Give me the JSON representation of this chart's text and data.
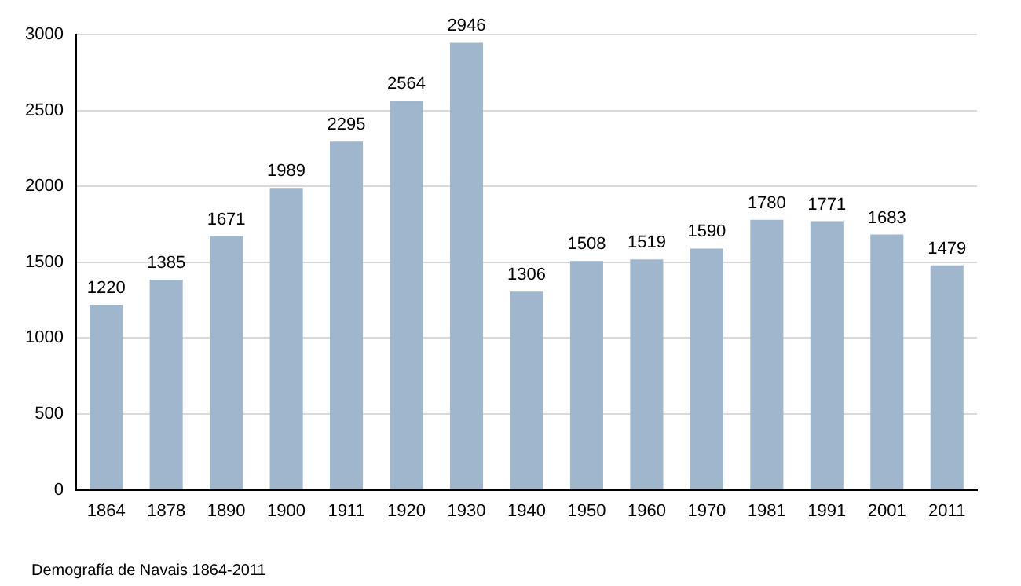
{
  "chart_data": {
    "type": "bar",
    "categories": [
      "1864",
      "1878",
      "1890",
      "1900",
      "1911",
      "1920",
      "1930",
      "1940",
      "1950",
      "1960",
      "1970",
      "1981",
      "1991",
      "2001",
      "2011"
    ],
    "values": [
      1220,
      1385,
      1671,
      1989,
      2295,
      2564,
      2946,
      1306,
      1508,
      1519,
      1590,
      1780,
      1771,
      1683,
      1479
    ],
    "color": "#9fb6cc",
    "ylim": [
      0,
      3000
    ],
    "yticks": [
      0,
      500,
      1000,
      1500,
      2000,
      2500,
      3000
    ],
    "grid": "y",
    "data_labels": true,
    "annotations": [
      "Demografía de Navais 1864-2011"
    ]
  }
}
